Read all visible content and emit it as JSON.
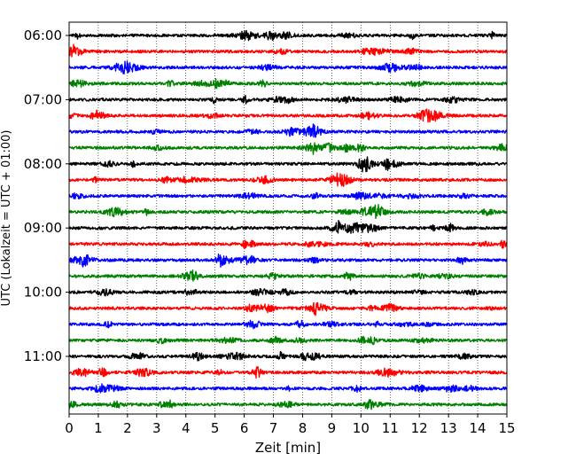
{
  "chart_data": {
    "type": "line",
    "title": "",
    "xlabel": "Zeit  [min]",
    "ylabel": "UTC (Lokalzeit = UTC + 01:00)",
    "xlim": [
      0,
      15
    ],
    "x_ticks": [
      "0",
      "1",
      "2",
      "3",
      "4",
      "5",
      "6",
      "7",
      "8",
      "9",
      "10",
      "11",
      "12",
      "13",
      "14",
      "15"
    ],
    "hour_labels": [
      "06:00",
      "07:00",
      "08:00",
      "09:00",
      "10:00",
      "11:00"
    ],
    "trace_colors": [
      "#000000",
      "#ff0000",
      "#0000ff",
      "#008000"
    ],
    "trace_count": 24,
    "traces_per_hour": 4,
    "grid": "vertical-dotted"
  }
}
